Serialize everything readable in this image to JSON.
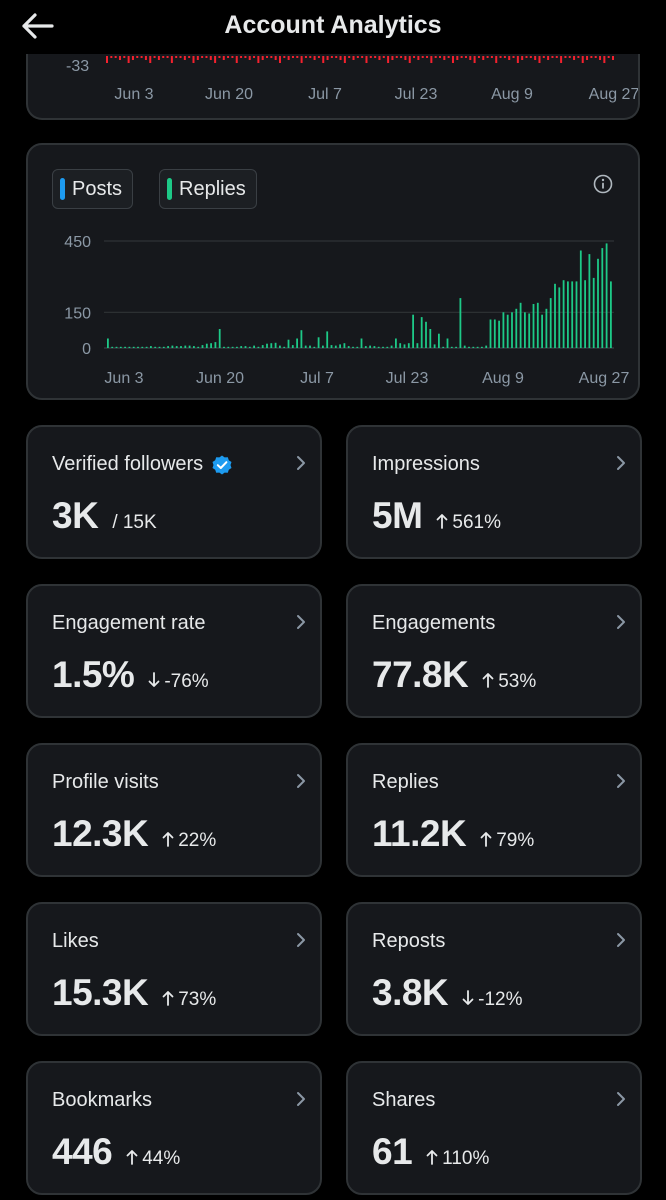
{
  "header": {
    "title": "Account Analytics"
  },
  "top_chart": {
    "ytick": "-33",
    "xticks": [
      "Jun 3",
      "Jun 20",
      "Jul 7",
      "Jul 23",
      "Aug 9",
      "Aug 27"
    ],
    "color": "#f4212e"
  },
  "chart_data": {
    "type": "bar",
    "legend": [
      {
        "name": "Posts",
        "color": "#1d9bf0"
      },
      {
        "name": "Replies",
        "color": "#1dc987"
      }
    ],
    "x_tick_labels": [
      "Jun 3",
      "Jun 20",
      "Jul 7",
      "Jul 23",
      "Aug 9",
      "Aug 27"
    ],
    "y_tick_labels": [
      "450",
      "150",
      "0"
    ],
    "y_ticks": [
      450,
      150,
      0
    ],
    "ylim": [
      0,
      450
    ],
    "series": [
      {
        "name": "Replies",
        "values": [
          40,
          5,
          5,
          5,
          5,
          5,
          5,
          5,
          5,
          5,
          8,
          5,
          5,
          5,
          8,
          10,
          8,
          8,
          10,
          10,
          8,
          5,
          12,
          18,
          20,
          25,
          80,
          5,
          5,
          5,
          5,
          8,
          8,
          5,
          10,
          5,
          12,
          18,
          20,
          22,
          10,
          5,
          35,
          12,
          40,
          75,
          10,
          10,
          5,
          45,
          10,
          70,
          12,
          10,
          15,
          20,
          8,
          5,
          5,
          40,
          8,
          10,
          8,
          5,
          5,
          5,
          10,
          40,
          20,
          15,
          20,
          140,
          20,
          130,
          110,
          80,
          15,
          60,
          5,
          40,
          5,
          5,
          210,
          10,
          5,
          5,
          5,
          5,
          10,
          120,
          120,
          115,
          150,
          140,
          150,
          165,
          190,
          150,
          145,
          185,
          190,
          140,
          165,
          210,
          270,
          255,
          285,
          280,
          280,
          280,
          410,
          285,
          395,
          295,
          375,
          420,
          440,
          280
        ]
      }
    ]
  },
  "stats": [
    {
      "label": "Verified followers",
      "value": "3K",
      "sub": "/ 15K",
      "trend": "none"
    },
    {
      "label": "Impressions",
      "value": "5M",
      "sub": "561%",
      "trend": "up"
    },
    {
      "label": "Engagement rate",
      "value": "1.5%",
      "sub": "-76%",
      "trend": "down"
    },
    {
      "label": "Engagements",
      "value": "77.8K",
      "sub": "53%",
      "trend": "up"
    },
    {
      "label": "Profile visits",
      "value": "12.3K",
      "sub": "22%",
      "trend": "up"
    },
    {
      "label": "Replies",
      "value": "11.2K",
      "sub": "79%",
      "trend": "up"
    },
    {
      "label": "Likes",
      "value": "15.3K",
      "sub": "73%",
      "trend": "up"
    },
    {
      "label": "Reposts",
      "value": "3.8K",
      "sub": "-12%",
      "trend": "down"
    },
    {
      "label": "Bookmarks",
      "value": "446",
      "sub": "44%",
      "trend": "up"
    },
    {
      "label": "Shares",
      "value": "61",
      "sub": "110%",
      "trend": "up"
    }
  ]
}
